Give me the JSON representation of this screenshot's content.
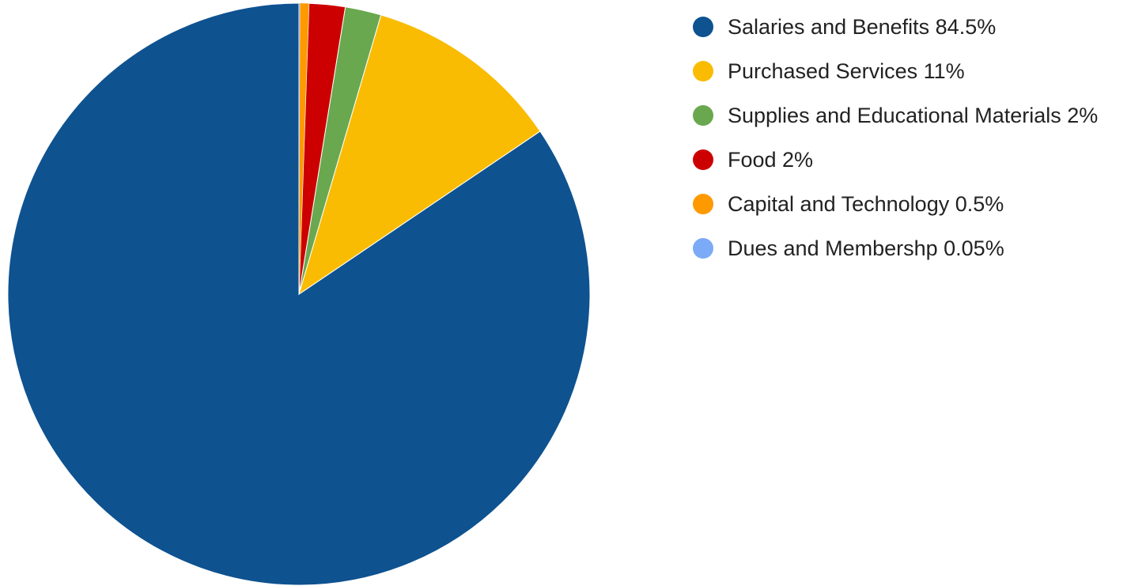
{
  "chart_data": {
    "type": "pie",
    "start": "top",
    "direction": "counter-clockwise",
    "legend_position": "right",
    "slices": [
      {
        "name": "Salaries and Benefits",
        "value": 84.5,
        "color": "#0e5290"
      },
      {
        "name": "Purchased Services",
        "value": 11,
        "color": "#f9bc02"
      },
      {
        "name": "Supplies and Educational Materials",
        "value": 2,
        "color": "#69a84f"
      },
      {
        "name": "Food",
        "value": 2,
        "color": "#cc0000"
      },
      {
        "name": "Capital and Technology",
        "value": 0.5,
        "color": "#fe9900"
      },
      {
        "name": "Dues and Membershp",
        "value": 0.05,
        "color": "#7baaf7"
      }
    ],
    "legend": [
      "Salaries and Benefits 84.5%",
      "Purchased Services 11%",
      "Supplies and Educational Materials 2%",
      "Food 2%",
      "Capital and Technology 0.5%",
      "Dues and Membershp 0.05%"
    ]
  }
}
